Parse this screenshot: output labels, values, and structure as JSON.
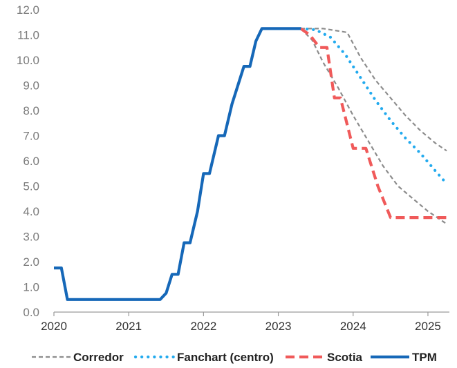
{
  "chart_data": {
    "type": "line",
    "title": "",
    "xlabel": "",
    "ylabel": "",
    "xlim": [
      2020,
      2025.25
    ],
    "ylim": [
      0,
      12
    ],
    "y_ticks": [
      "0.0",
      "1.0",
      "2.0",
      "3.0",
      "4.0",
      "5.0",
      "6.0",
      "7.0",
      "8.0",
      "9.0",
      "10.0",
      "11.0",
      "12.0"
    ],
    "x_ticks": [
      "2020",
      "2021",
      "2022",
      "2023",
      "2024",
      "2025"
    ],
    "grid": false,
    "legend_position": "bottom",
    "series": [
      {
        "name": "TPM",
        "color": "#1668b8",
        "style": "solid",
        "points": [
          [
            2020.0,
            1.75
          ],
          [
            2020.1,
            1.75
          ],
          [
            2020.18,
            0.5
          ],
          [
            2021.42,
            0.5
          ],
          [
            2021.5,
            0.75
          ],
          [
            2021.58,
            1.5
          ],
          [
            2021.66,
            1.5
          ],
          [
            2021.74,
            2.75
          ],
          [
            2021.82,
            2.75
          ],
          [
            2021.92,
            4.0
          ],
          [
            2022.0,
            5.5
          ],
          [
            2022.08,
            5.5
          ],
          [
            2022.2,
            7.0
          ],
          [
            2022.28,
            7.0
          ],
          [
            2022.38,
            8.25
          ],
          [
            2022.54,
            9.75
          ],
          [
            2022.62,
            9.75
          ],
          [
            2022.7,
            10.75
          ],
          [
            2022.78,
            11.25
          ],
          [
            2023.3,
            11.25
          ]
        ]
      },
      {
        "name": "Scotia",
        "color": "#f05a5a",
        "style": "dashed",
        "points": [
          [
            2023.3,
            11.25
          ],
          [
            2023.42,
            11.0
          ],
          [
            2023.55,
            10.5
          ],
          [
            2023.65,
            10.5
          ],
          [
            2023.75,
            8.5
          ],
          [
            2023.83,
            8.5
          ],
          [
            2024.0,
            6.5
          ],
          [
            2024.17,
            6.5
          ],
          [
            2024.33,
            5.0
          ],
          [
            2024.5,
            3.75
          ],
          [
            2025.25,
            3.75
          ]
        ]
      },
      {
        "name": "Fanchart (centro)",
        "color": "#22aaee",
        "style": "dotted",
        "points": [
          [
            2023.3,
            11.25
          ],
          [
            2023.5,
            11.2
          ],
          [
            2023.7,
            10.9
          ],
          [
            2023.9,
            10.2
          ],
          [
            2024.1,
            9.3
          ],
          [
            2024.3,
            8.4
          ],
          [
            2024.5,
            7.6
          ],
          [
            2024.7,
            6.9
          ],
          [
            2024.9,
            6.3
          ],
          [
            2025.1,
            5.6
          ],
          [
            2025.25,
            5.1
          ]
        ]
      },
      {
        "name": "Corredor",
        "color": "#8c8c8c",
        "style": "dashed-thin",
        "points": [
          [
            2023.3,
            11.25
          ],
          [
            2023.6,
            11.25
          ],
          [
            2023.92,
            11.1
          ],
          [
            2024.1,
            10.1
          ],
          [
            2024.3,
            9.2
          ],
          [
            2024.5,
            8.5
          ],
          [
            2024.7,
            7.8
          ],
          [
            2024.9,
            7.2
          ],
          [
            2025.1,
            6.7
          ],
          [
            2025.25,
            6.4
          ]
        ]
      },
      {
        "name": "",
        "color": "#8c8c8c",
        "style": "dashed-thin",
        "points": [
          [
            2023.3,
            11.25
          ],
          [
            2023.45,
            10.8
          ],
          [
            2023.6,
            9.9
          ],
          [
            2023.8,
            8.9
          ],
          [
            2024.0,
            7.8
          ],
          [
            2024.2,
            6.8
          ],
          [
            2024.4,
            5.8
          ],
          [
            2024.6,
            5.0
          ],
          [
            2024.8,
            4.5
          ],
          [
            2025.0,
            4.0
          ],
          [
            2025.25,
            3.5
          ]
        ]
      }
    ],
    "legend": [
      {
        "label": "Corredor",
        "style": "dashed-thin",
        "color": "#8c8c8c"
      },
      {
        "label": "Fanchart (centro)",
        "style": "dotted",
        "color": "#22aaee"
      },
      {
        "label": "Scotia",
        "style": "dashed",
        "color": "#f05a5a"
      },
      {
        "label": "TPM",
        "style": "solid",
        "color": "#1668b8"
      }
    ]
  }
}
